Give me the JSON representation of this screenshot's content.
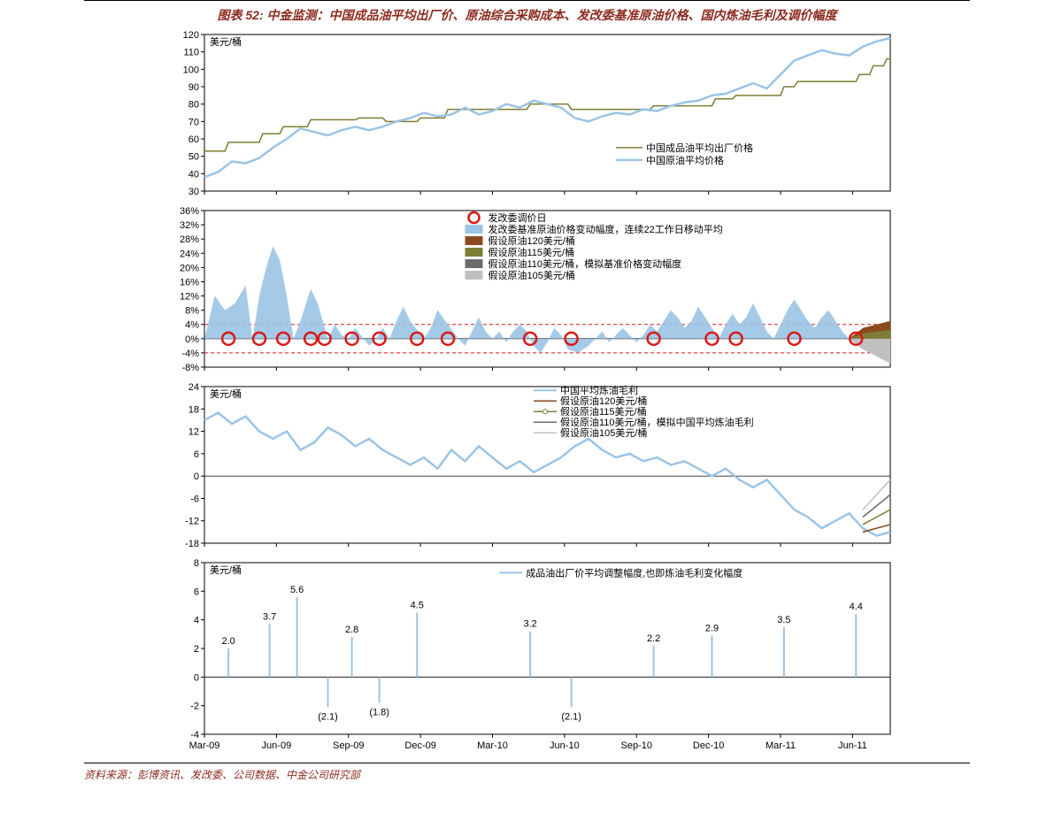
{
  "title": "图表 52: 中金监测：中国成品油平均出厂价、原油综合采购成本、发改委基准原油价格、国内炼油毛利及调价幅度",
  "footer": "资料来源：彭博资讯、发改委、公司数据、中金公司研究部",
  "colors": {
    "title": "#8b2a1f",
    "axis": "#000000",
    "grid": "#000000",
    "line_olive": "#7d7d36",
    "line_blue": "#9bc4e6",
    "area_blue": "#9bc4e6",
    "circle_red": "#d91818",
    "dashed_red": "#d91818",
    "brown": "#8a4a1e",
    "olive2": "#7d7d36",
    "gray_dark": "#6b6b6b",
    "gray_light": "#c0c0c0",
    "bg": "#ffffff"
  },
  "x_axis": {
    "labels": [
      "Mar-09",
      "Jun-09",
      "Sep-09",
      "Dec-09",
      "Mar-10",
      "Jun-10",
      "Sep-10",
      "Dec-10",
      "Mar-11",
      "Jun-11"
    ],
    "positions": [
      0,
      0.105,
      0.21,
      0.315,
      0.42,
      0.525,
      0.63,
      0.735,
      0.84,
      0.945
    ]
  },
  "chart1": {
    "type": "line",
    "ylabel": "美元/桶",
    "ylim": [
      30,
      120
    ],
    "ytick_step": 10,
    "legend": [
      {
        "label": "中国成品油平均出厂价格",
        "color": "#7d7d36",
        "style": "line"
      },
      {
        "label": "中国原油平均价格",
        "color": "#9bc4e6",
        "style": "line",
        "width": 2
      }
    ],
    "series_olive": [
      [
        0,
        53
      ],
      [
        0.03,
        53
      ],
      [
        0.035,
        58
      ],
      [
        0.08,
        58
      ],
      [
        0.085,
        63
      ],
      [
        0.11,
        63
      ],
      [
        0.115,
        67
      ],
      [
        0.15,
        67
      ],
      [
        0.155,
        71
      ],
      [
        0.22,
        71
      ],
      [
        0.225,
        72
      ],
      [
        0.26,
        72
      ],
      [
        0.265,
        70
      ],
      [
        0.31,
        70
      ],
      [
        0.315,
        72
      ],
      [
        0.35,
        72
      ],
      [
        0.355,
        77
      ],
      [
        0.47,
        77
      ],
      [
        0.475,
        80
      ],
      [
        0.53,
        80
      ],
      [
        0.535,
        77
      ],
      [
        0.65,
        77
      ],
      [
        0.655,
        79
      ],
      [
        0.74,
        79
      ],
      [
        0.745,
        83
      ],
      [
        0.77,
        83
      ],
      [
        0.775,
        85
      ],
      [
        0.84,
        85
      ],
      [
        0.845,
        90
      ],
      [
        0.86,
        90
      ],
      [
        0.865,
        93
      ],
      [
        0.95,
        93
      ],
      [
        0.955,
        97
      ],
      [
        0.97,
        97
      ],
      [
        0.975,
        102
      ],
      [
        0.99,
        102
      ],
      [
        0.995,
        106
      ],
      [
        1.0,
        106
      ]
    ],
    "series_blue": [
      [
        0,
        38
      ],
      [
        0.02,
        41
      ],
      [
        0.04,
        47
      ],
      [
        0.06,
        46
      ],
      [
        0.08,
        49
      ],
      [
        0.1,
        55
      ],
      [
        0.12,
        60
      ],
      [
        0.14,
        66
      ],
      [
        0.16,
        64
      ],
      [
        0.18,
        62
      ],
      [
        0.2,
        65
      ],
      [
        0.22,
        67
      ],
      [
        0.24,
        65
      ],
      [
        0.26,
        67
      ],
      [
        0.28,
        70
      ],
      [
        0.3,
        72
      ],
      [
        0.32,
        75
      ],
      [
        0.34,
        73
      ],
      [
        0.36,
        74
      ],
      [
        0.38,
        78
      ],
      [
        0.4,
        74
      ],
      [
        0.42,
        76
      ],
      [
        0.44,
        80
      ],
      [
        0.46,
        78
      ],
      [
        0.48,
        82
      ],
      [
        0.5,
        80
      ],
      [
        0.52,
        78
      ],
      [
        0.54,
        72
      ],
      [
        0.56,
        70
      ],
      [
        0.58,
        73
      ],
      [
        0.6,
        75
      ],
      [
        0.62,
        74
      ],
      [
        0.64,
        77
      ],
      [
        0.66,
        76
      ],
      [
        0.68,
        79
      ],
      [
        0.7,
        81
      ],
      [
        0.72,
        82
      ],
      [
        0.74,
        85
      ],
      [
        0.76,
        86
      ],
      [
        0.78,
        89
      ],
      [
        0.8,
        92
      ],
      [
        0.82,
        89
      ],
      [
        0.84,
        97
      ],
      [
        0.86,
        105
      ],
      [
        0.88,
        108
      ],
      [
        0.9,
        111
      ],
      [
        0.92,
        109
      ],
      [
        0.94,
        108
      ],
      [
        0.96,
        113
      ],
      [
        0.98,
        116
      ],
      [
        1.0,
        118
      ]
    ]
  },
  "chart2": {
    "type": "area",
    "ylim": [
      -8,
      36
    ],
    "ytick_step": 4,
    "ytick_suffix": "%",
    "ref_lines": [
      4,
      -4
    ],
    "legend": [
      {
        "label": "发改委调价日",
        "style": "circle",
        "color": "#d91818"
      },
      {
        "label": "发改委基准原油价格变动幅度，连续22工作日移动平均",
        "style": "area",
        "color": "#9bc4e6"
      },
      {
        "label": "假设原油120美元/桶",
        "style": "rect",
        "color": "#8a4a1e"
      },
      {
        "label": "假设原油115美元/桶",
        "style": "rect",
        "color": "#7d7d36"
      },
      {
        "label": "假设原油110美元/桶，模拟基准价格变动幅度",
        "style": "rect",
        "color": "#6b6b6b"
      },
      {
        "label": "假设原油105美元/桶",
        "style": "rect",
        "color": "#c0c0c0"
      }
    ],
    "area": [
      [
        0,
        0
      ],
      [
        0.015,
        12
      ],
      [
        0.03,
        8
      ],
      [
        0.045,
        10
      ],
      [
        0.06,
        15
      ],
      [
        0.07,
        0
      ],
      [
        0.08,
        12
      ],
      [
        0.09,
        20
      ],
      [
        0.1,
        26
      ],
      [
        0.11,
        22
      ],
      [
        0.12,
        12
      ],
      [
        0.13,
        0
      ],
      [
        0.14,
        5
      ],
      [
        0.155,
        14
      ],
      [
        0.165,
        10
      ],
      [
        0.18,
        0
      ],
      [
        0.19,
        4
      ],
      [
        0.2,
        1
      ],
      [
        0.21,
        0
      ],
      [
        0.22,
        3
      ],
      [
        0.24,
        -2
      ],
      [
        0.25,
        0
      ],
      [
        0.26,
        3
      ],
      [
        0.27,
        0
      ],
      [
        0.28,
        5
      ],
      [
        0.29,
        9
      ],
      [
        0.3,
        5
      ],
      [
        0.32,
        0
      ],
      [
        0.33,
        3
      ],
      [
        0.34,
        8
      ],
      [
        0.355,
        4
      ],
      [
        0.37,
        0
      ],
      [
        0.38,
        -2
      ],
      [
        0.39,
        2
      ],
      [
        0.4,
        6
      ],
      [
        0.41,
        2
      ],
      [
        0.42,
        0
      ],
      [
        0.43,
        2
      ],
      [
        0.44,
        -1
      ],
      [
        0.45,
        2
      ],
      [
        0.46,
        4
      ],
      [
        0.47,
        2
      ],
      [
        0.48,
        -2
      ],
      [
        0.49,
        -4
      ],
      [
        0.5,
        -1
      ],
      [
        0.51,
        3
      ],
      [
        0.52,
        1
      ],
      [
        0.53,
        -3
      ],
      [
        0.545,
        -4
      ],
      [
        0.56,
        -2
      ],
      [
        0.57,
        0
      ],
      [
        0.58,
        2
      ],
      [
        0.59,
        -1
      ],
      [
        0.6,
        1
      ],
      [
        0.61,
        3
      ],
      [
        0.62,
        1
      ],
      [
        0.63,
        -1
      ],
      [
        0.64,
        1
      ],
      [
        0.65,
        4
      ],
      [
        0.66,
        2
      ],
      [
        0.67,
        5
      ],
      [
        0.68,
        8
      ],
      [
        0.69,
        6
      ],
      [
        0.7,
        3
      ],
      [
        0.71,
        5
      ],
      [
        0.72,
        9
      ],
      [
        0.73,
        6
      ],
      [
        0.74,
        3
      ],
      [
        0.75,
        0
      ],
      [
        0.76,
        4
      ],
      [
        0.77,
        7
      ],
      [
        0.78,
        4
      ],
      [
        0.79,
        6
      ],
      [
        0.8,
        10
      ],
      [
        0.81,
        6
      ],
      [
        0.82,
        2
      ],
      [
        0.83,
        0
      ],
      [
        0.84,
        4
      ],
      [
        0.85,
        8
      ],
      [
        0.86,
        11
      ],
      [
        0.87,
        8
      ],
      [
        0.88,
        5
      ],
      [
        0.89,
        3
      ],
      [
        0.9,
        6
      ],
      [
        0.91,
        8
      ],
      [
        0.92,
        5
      ],
      [
        0.93,
        2
      ],
      [
        0.94,
        0
      ]
    ],
    "circles_x": [
      0.035,
      0.08,
      0.115,
      0.155,
      0.175,
      0.215,
      0.255,
      0.31,
      0.355,
      0.475,
      0.535,
      0.655,
      0.74,
      0.775,
      0.86,
      0.95
    ],
    "wedges": [
      {
        "color": "#8a4a1e",
        "pts": [
          [
            0.94,
            0
          ],
          [
            0.96,
            3
          ],
          [
            0.98,
            4
          ],
          [
            1.0,
            5
          ],
          [
            1.0,
            0
          ]
        ]
      },
      {
        "color": "#7d7d36",
        "pts": [
          [
            0.94,
            0
          ],
          [
            0.96,
            1.5
          ],
          [
            0.98,
            2
          ],
          [
            1.0,
            2.5
          ],
          [
            1.0,
            0
          ]
        ]
      },
      {
        "color": "#6b6b6b",
        "pts": [
          [
            0.94,
            0
          ],
          [
            0.96,
            -1
          ],
          [
            0.98,
            -2
          ],
          [
            1.0,
            -2.5
          ],
          [
            1.0,
            0
          ]
        ]
      },
      {
        "color": "#c0c0c0",
        "pts": [
          [
            0.94,
            0
          ],
          [
            0.96,
            -3
          ],
          [
            0.98,
            -5
          ],
          [
            1.0,
            -7
          ],
          [
            1.0,
            0
          ]
        ]
      }
    ]
  },
  "chart3": {
    "type": "line",
    "ylabel": "美元/桶",
    "ylim": [
      -18,
      24
    ],
    "ytick_step": 6,
    "legend": [
      {
        "label": "中国平均炼油毛利",
        "style": "line",
        "color": "#9bc4e6",
        "width": 2
      },
      {
        "label": "假设原油120美元/桶",
        "style": "line",
        "color": "#8a4a1e"
      },
      {
        "label": "假设原油115美元/桶",
        "style": "line-marker",
        "color": "#7d7d36"
      },
      {
        "label": "假设原油110美元/桶，模拟中国平均炼油毛利",
        "style": "line",
        "color": "#6b6b6b"
      },
      {
        "label": "假设原油105美元/桶",
        "style": "line",
        "color": "#c0c0c0"
      }
    ],
    "series_blue": [
      [
        0,
        15
      ],
      [
        0.02,
        17
      ],
      [
        0.04,
        14
      ],
      [
        0.06,
        16
      ],
      [
        0.08,
        12
      ],
      [
        0.1,
        10
      ],
      [
        0.12,
        12
      ],
      [
        0.14,
        7
      ],
      [
        0.16,
        9
      ],
      [
        0.18,
        13
      ],
      [
        0.2,
        11
      ],
      [
        0.22,
        8
      ],
      [
        0.24,
        10
      ],
      [
        0.26,
        7
      ],
      [
        0.28,
        5
      ],
      [
        0.3,
        3
      ],
      [
        0.32,
        5
      ],
      [
        0.34,
        2
      ],
      [
        0.36,
        7
      ],
      [
        0.38,
        4
      ],
      [
        0.4,
        8
      ],
      [
        0.42,
        5
      ],
      [
        0.44,
        2
      ],
      [
        0.46,
        4
      ],
      [
        0.48,
        1
      ],
      [
        0.5,
        3
      ],
      [
        0.52,
        5
      ],
      [
        0.54,
        8
      ],
      [
        0.56,
        10
      ],
      [
        0.58,
        7
      ],
      [
        0.6,
        5
      ],
      [
        0.62,
        6
      ],
      [
        0.64,
        4
      ],
      [
        0.66,
        5
      ],
      [
        0.68,
        3
      ],
      [
        0.7,
        4
      ],
      [
        0.72,
        2
      ],
      [
        0.74,
        0
      ],
      [
        0.76,
        2
      ],
      [
        0.78,
        -1
      ],
      [
        0.8,
        -3
      ],
      [
        0.82,
        -1
      ],
      [
        0.84,
        -5
      ],
      [
        0.86,
        -9
      ],
      [
        0.88,
        -11
      ],
      [
        0.9,
        -14
      ],
      [
        0.92,
        -12
      ],
      [
        0.94,
        -10
      ],
      [
        0.96,
        -14
      ],
      [
        0.98,
        -16
      ],
      [
        1.0,
        -15
      ]
    ],
    "tails": [
      {
        "color": "#8a4a1e",
        "pts": [
          [
            0.96,
            -15
          ],
          [
            0.98,
            -14
          ],
          [
            1.0,
            -13
          ]
        ]
      },
      {
        "color": "#7d7d36",
        "pts": [
          [
            0.96,
            -13
          ],
          [
            0.98,
            -11
          ],
          [
            1.0,
            -9
          ]
        ]
      },
      {
        "color": "#6b6b6b",
        "pts": [
          [
            0.96,
            -11
          ],
          [
            0.98,
            -8
          ],
          [
            1.0,
            -5
          ]
        ]
      },
      {
        "color": "#c0c0c0",
        "pts": [
          [
            0.96,
            -9
          ],
          [
            0.98,
            -5
          ],
          [
            1.0,
            -1
          ]
        ]
      }
    ]
  },
  "chart4": {
    "type": "bar",
    "ylabel": "美元/桶",
    "ylim": [
      -4,
      8
    ],
    "ytick_step": 2,
    "legend": [
      {
        "label": "成品油出厂价平均调整幅度,也即炼油毛利变化幅度",
        "style": "line",
        "color": "#9bc4e6"
      }
    ],
    "bars": [
      {
        "x": 0.035,
        "v": 2.0,
        "label": "2.0"
      },
      {
        "x": 0.095,
        "v": 3.7,
        "label": "3.7"
      },
      {
        "x": 0.135,
        "v": 5.6,
        "label": "5.6"
      },
      {
        "x": 0.18,
        "v": -2.1,
        "label": "(2.1)"
      },
      {
        "x": 0.215,
        "v": 2.8,
        "label": "2.8"
      },
      {
        "x": 0.255,
        "v": -1.8,
        "label": "(1.8)"
      },
      {
        "x": 0.31,
        "v": 4.5,
        "label": "4.5"
      },
      {
        "x": 0.475,
        "v": 3.2,
        "label": "3.2"
      },
      {
        "x": 0.535,
        "v": -2.1,
        "label": "(2.1)"
      },
      {
        "x": 0.655,
        "v": 2.2,
        "label": "2.2"
      },
      {
        "x": 0.74,
        "v": 2.9,
        "label": "2.9"
      },
      {
        "x": 0.845,
        "v": 3.5,
        "label": "3.5"
      },
      {
        "x": 0.95,
        "v": 4.4,
        "label": "4.4"
      }
    ]
  }
}
